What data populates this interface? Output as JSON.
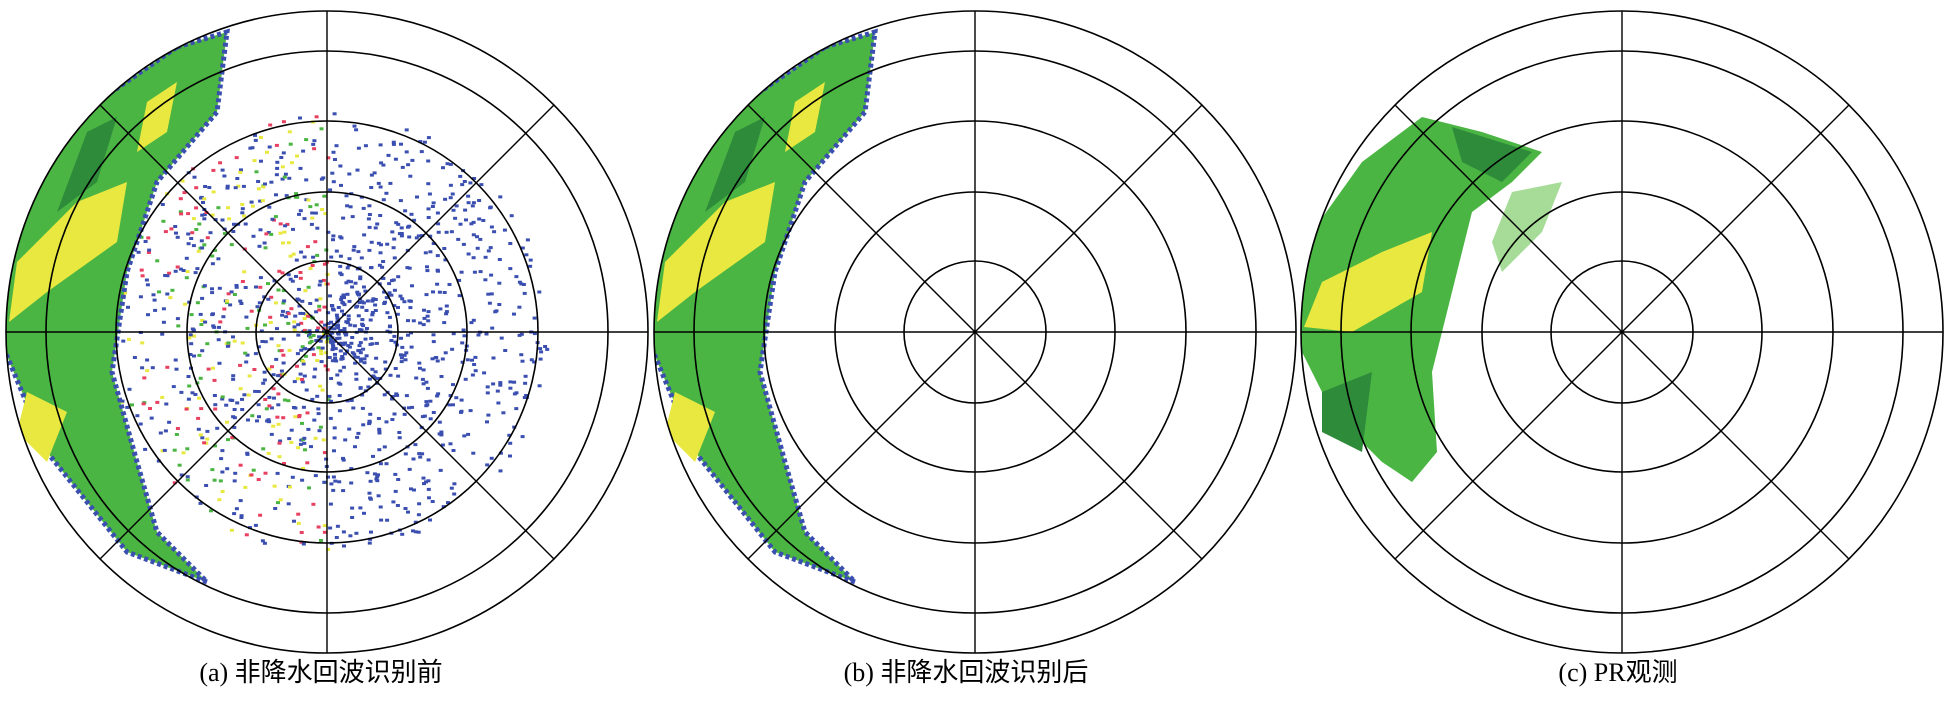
{
  "panels": [
    {
      "caption": "(a) 非降水回波识别前"
    },
    {
      "caption": "(b) 非降水回波识别后"
    },
    {
      "caption": "(c) PR观测"
    }
  ]
}
